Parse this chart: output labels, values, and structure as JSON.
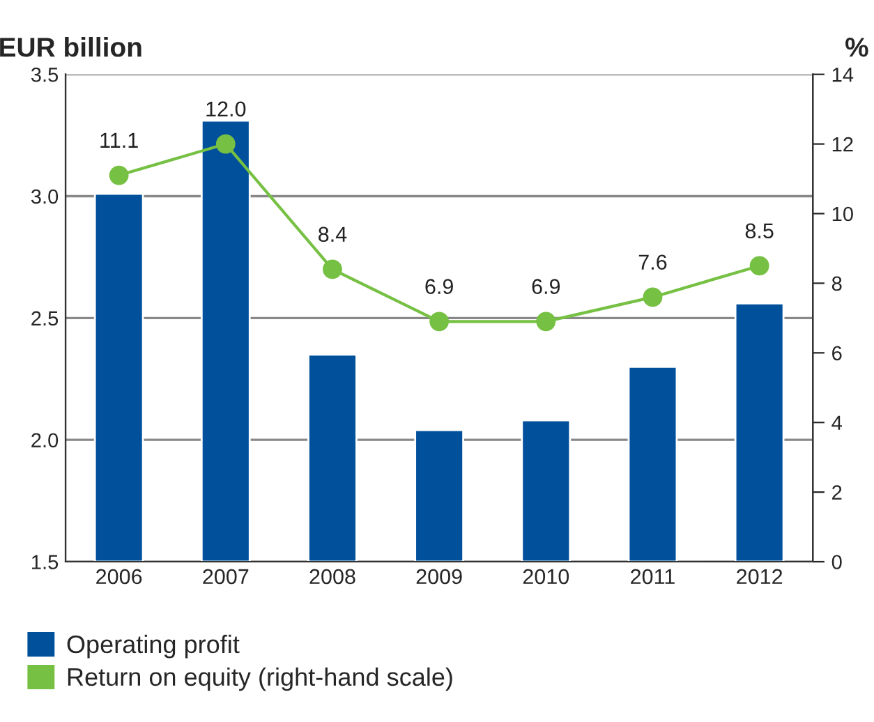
{
  "chart_data": {
    "type": "bar",
    "ylabel": "EUR billion",
    "y2label": "%",
    "categories": [
      "2006",
      "2007",
      "2008",
      "2009",
      "2010",
      "2011",
      "2012"
    ],
    "series": [
      {
        "name": "Operating profit",
        "color": "#00509b",
        "values": [
          3.01,
          3.31,
          2.35,
          2.04,
          2.08,
          2.3,
          2.56
        ]
      },
      {
        "name": "Return on equity (right-hand scale)",
        "type": "line",
        "axis": "y2",
        "color": "#76c043",
        "marker": "circle",
        "values": [
          11.1,
          12.0,
          8.4,
          6.9,
          6.9,
          7.6,
          8.5
        ],
        "value_labels": [
          "11.1",
          "12.0",
          "8.4",
          "6.9",
          "6.9",
          "7.6",
          "8.5"
        ]
      }
    ],
    "ylim": [
      1.5,
      3.5
    ],
    "yticks": [
      1.5,
      {
        "value": 2,
        "label": "2.0"
      },
      2.5,
      {
        "value": 3,
        "label": "3.0"
      },
      3.5
    ],
    "y2lim": [
      0,
      14
    ],
    "y2ticks": [
      0,
      2,
      4,
      6,
      8,
      10,
      12,
      14
    ],
    "grid": "y",
    "legend": "bottom left"
  }
}
